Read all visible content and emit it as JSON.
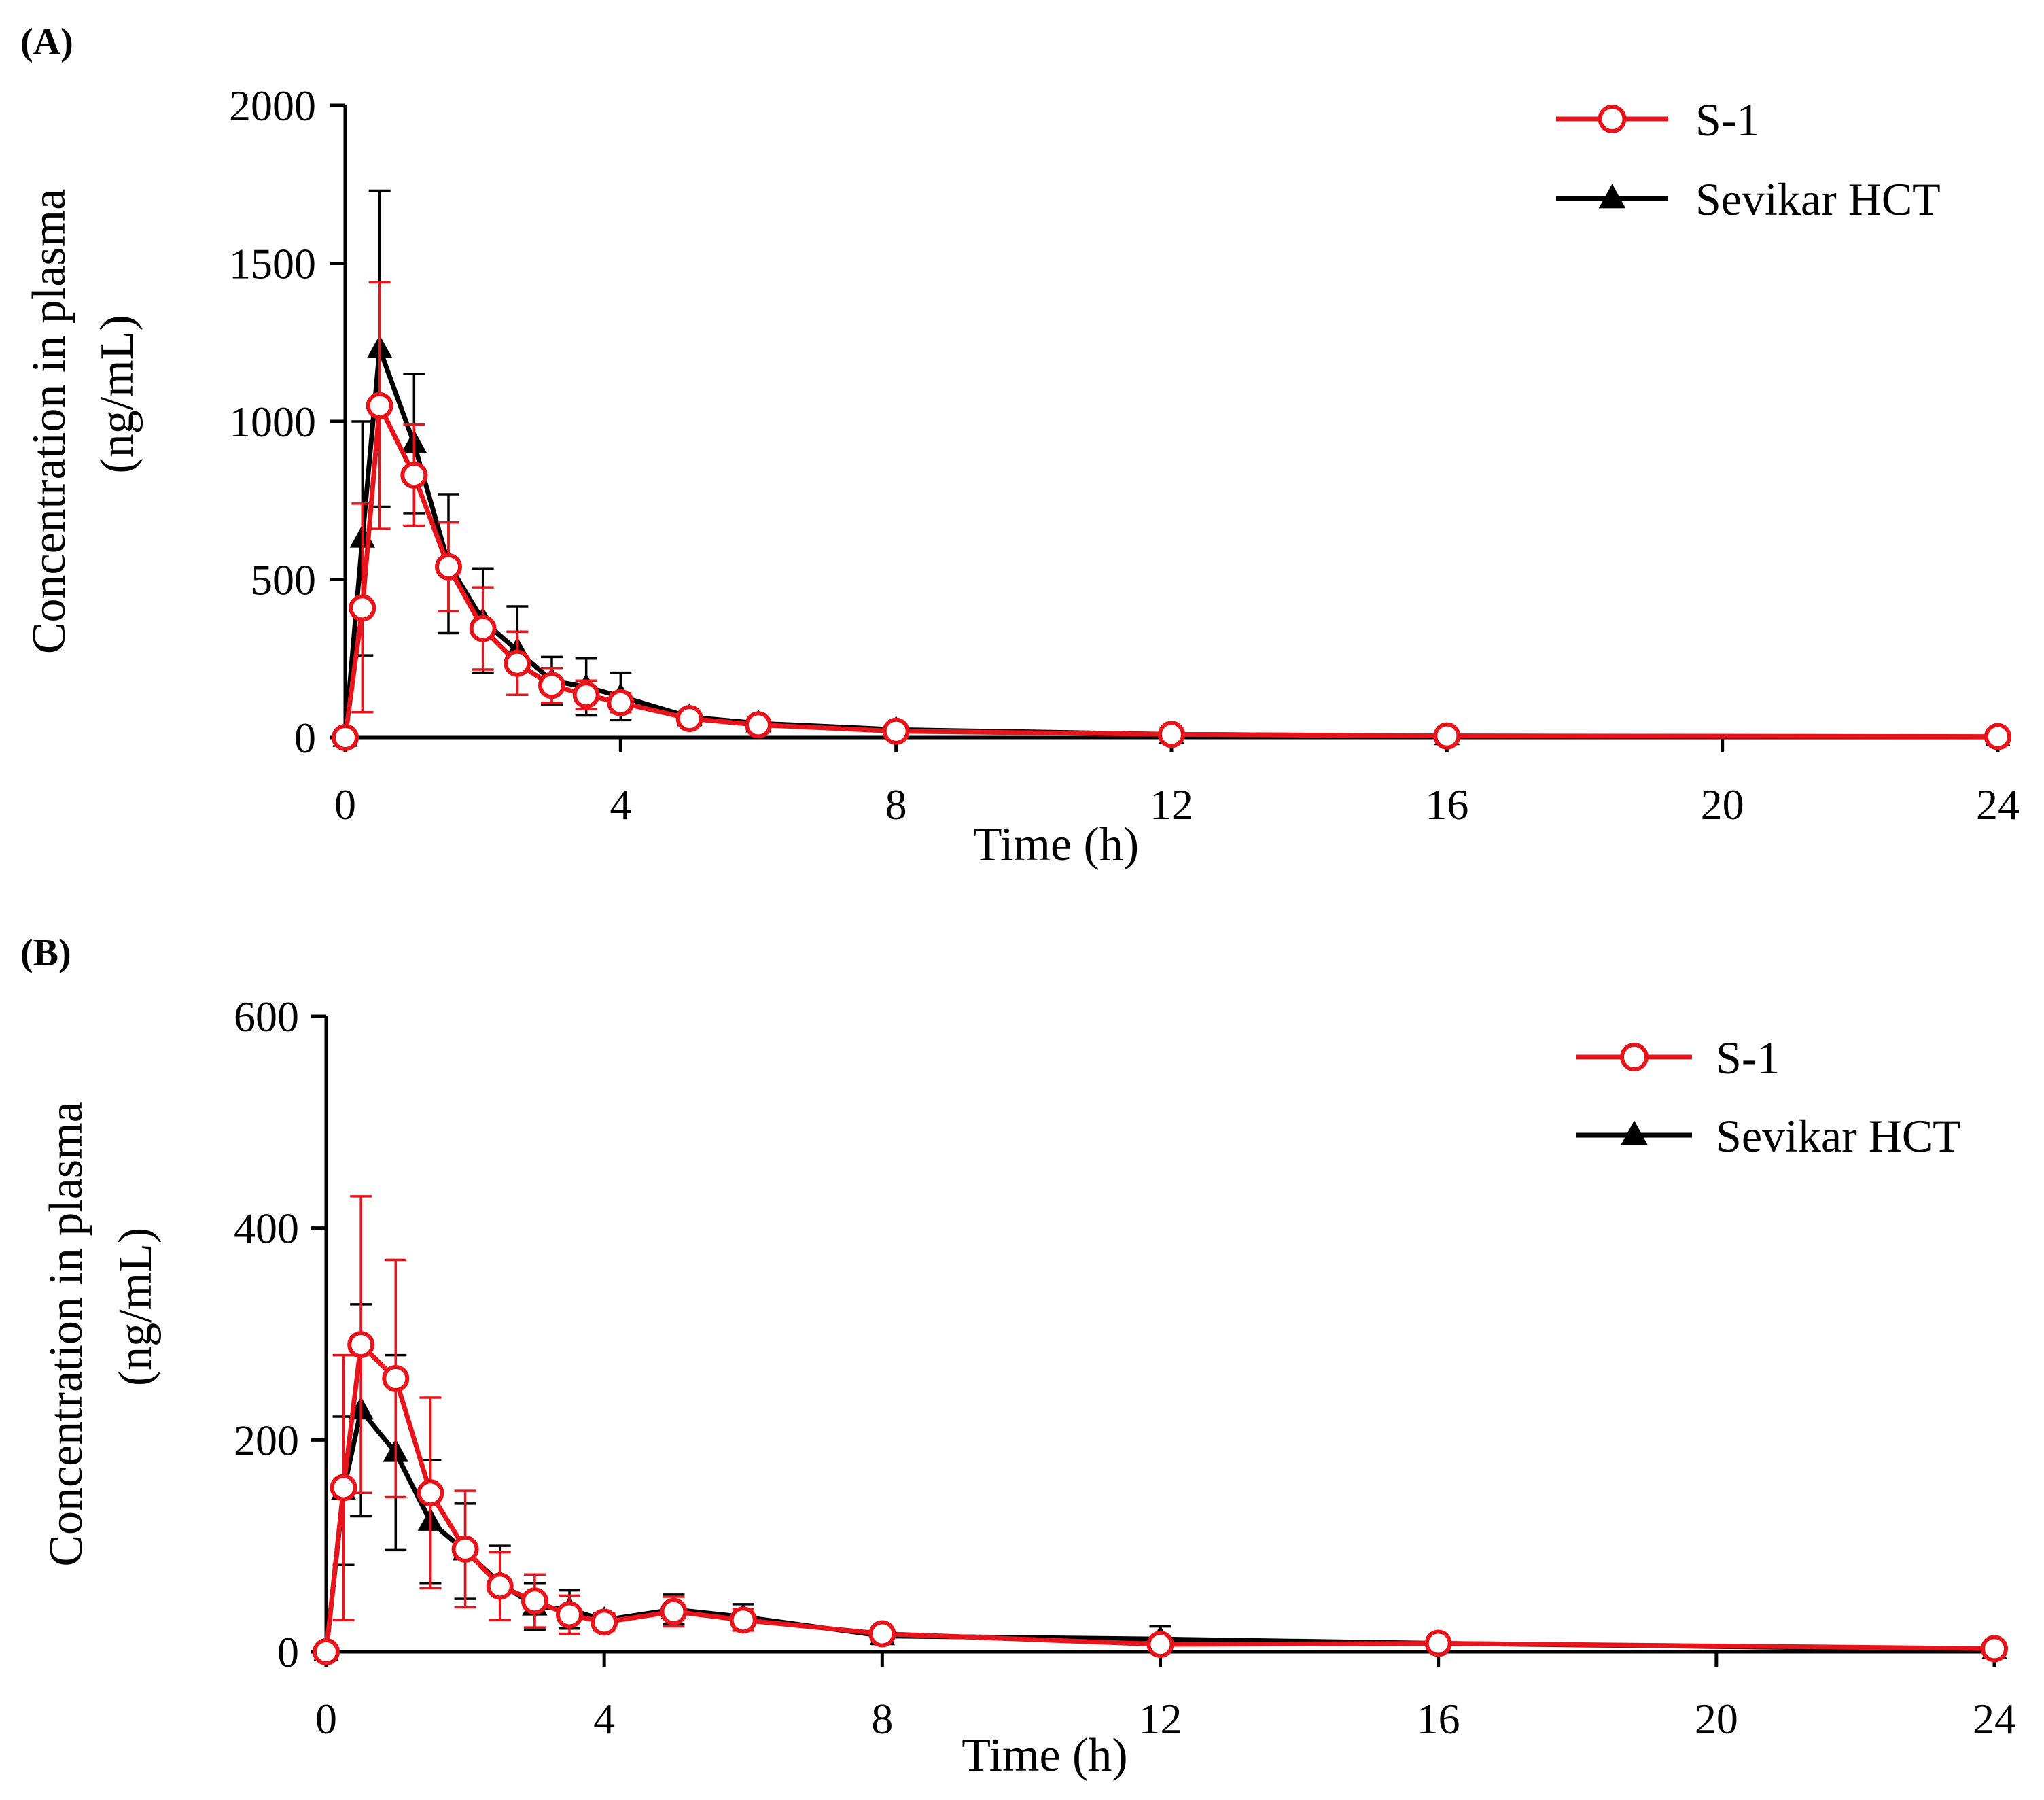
{
  "chart_data": [
    {
      "type": "line",
      "panel_label": "(A)",
      "xlabel": "Time (h)",
      "ylabel_line1": "Concentration in plasma",
      "ylabel_line2": "(ng/mL)",
      "xlim": [
        0,
        24
      ],
      "ylim": [
        0,
        2000
      ],
      "xticks": [
        0,
        4,
        8,
        12,
        16,
        20,
        24
      ],
      "yticks": [
        0,
        500,
        1000,
        1500,
        2000
      ],
      "legend_position": "top-right",
      "series": [
        {
          "name": "S-1",
          "color": "#e8141c",
          "marker": "open-circle",
          "x": [
            0,
            0.25,
            0.5,
            1,
            1.5,
            2,
            2.5,
            3,
            3.5,
            4,
            5,
            6,
            8,
            12,
            16,
            24
          ],
          "values": [
            0,
            410,
            1050,
            830,
            540,
            345,
            235,
            165,
            135,
            110,
            60,
            40,
            20,
            10,
            5,
            3
          ],
          "errors": [
            0,
            330,
            390,
            160,
            140,
            130,
            100,
            55,
            45,
            30,
            15,
            10,
            5,
            3,
            2,
            1
          ]
        },
        {
          "name": "Sevikar HCT",
          "color": "#000000",
          "marker": "filled-triangle",
          "x": [
            0,
            0.25,
            0.5,
            1,
            1.5,
            2,
            2.5,
            3,
            3.5,
            4,
            5,
            6,
            8,
            12,
            16,
            24
          ],
          "values": [
            0,
            630,
            1230,
            930,
            550,
            370,
            275,
            180,
            160,
            130,
            65,
            45,
            25,
            10,
            5,
            2
          ],
          "errors": [
            0,
            370,
            500,
            220,
            220,
            165,
            140,
            75,
            90,
            75,
            20,
            12,
            8,
            3,
            2,
            1
          ]
        }
      ]
    },
    {
      "type": "line",
      "panel_label": "(B)",
      "xlabel": "Time (h)",
      "ylabel_line1": "Concentration in plasma",
      "ylabel_line2": "(ng/mL)",
      "xlim": [
        0,
        24
      ],
      "ylim": [
        0,
        600
      ],
      "xticks": [
        0,
        4,
        8,
        12,
        16,
        20,
        24
      ],
      "yticks": [
        0,
        200,
        400,
        600
      ],
      "legend_position": "top-right",
      "series": [
        {
          "name": "S-1",
          "color": "#e8141c",
          "marker": "open-circle",
          "x": [
            0,
            0.25,
            0.5,
            1,
            1.5,
            2,
            2.5,
            3,
            3.5,
            4,
            5,
            6,
            8,
            12,
            16,
            24
          ],
          "values": [
            0,
            155,
            290,
            258,
            150,
            97,
            62,
            48,
            35,
            28,
            38,
            30,
            17,
            7,
            8,
            3
          ],
          "errors": [
            0,
            125,
            140,
            112,
            90,
            55,
            32,
            25,
            18,
            8,
            14,
            10,
            3,
            3,
            3,
            1
          ]
        },
        {
          "name": "Sevikar HCT",
          "color": "#000000",
          "marker": "filled-triangle",
          "x": [
            0,
            0.25,
            0.5,
            1,
            1.5,
            2,
            2.5,
            3,
            3.5,
            4,
            5,
            6,
            8,
            12,
            16,
            24
          ],
          "values": [
            0,
            152,
            228,
            188,
            123,
            95,
            65,
            43,
            40,
            30,
            40,
            33,
            15,
            12,
            8,
            2
          ],
          "errors": [
            0,
            70,
            100,
            92,
            58,
            45,
            35,
            22,
            18,
            6,
            14,
            12,
            4,
            12,
            3,
            1
          ]
        }
      ]
    }
  ]
}
